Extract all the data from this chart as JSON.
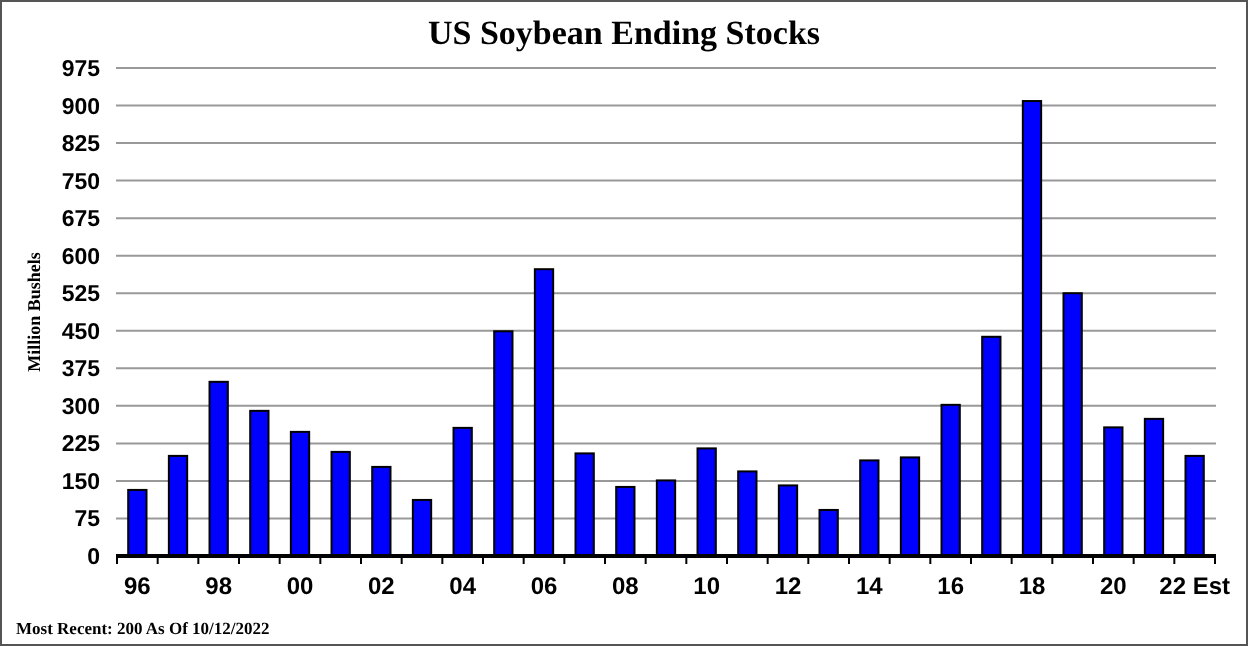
{
  "chart_data": {
    "type": "bar",
    "title": "US Soybean Ending Stocks",
    "ylabel": "Million Bushels",
    "categories": [
      "96",
      null,
      "98",
      null,
      "00",
      null,
      "02",
      null,
      "04",
      null,
      "06",
      null,
      "08",
      null,
      "10",
      null,
      "12",
      null,
      "14",
      null,
      "16",
      null,
      "18",
      null,
      "20",
      null,
      "22 Est"
    ],
    "values": [
      132,
      200,
      348,
      290,
      248,
      208,
      178,
      112,
      256,
      449,
      573,
      205,
      138,
      151,
      215,
      169,
      141,
      92,
      191,
      197,
      302,
      438,
      909,
      525,
      257,
      274,
      200
    ],
    "color": "#0000ff",
    "ylim": [
      0,
      975
    ],
    "yticks": [
      0,
      75,
      150,
      225,
      300,
      375,
      450,
      525,
      600,
      675,
      750,
      825,
      900,
      975
    ],
    "grid": "y",
    "annotations": [
      "Most Recent: 200 As Of 10/12/2022"
    ]
  }
}
